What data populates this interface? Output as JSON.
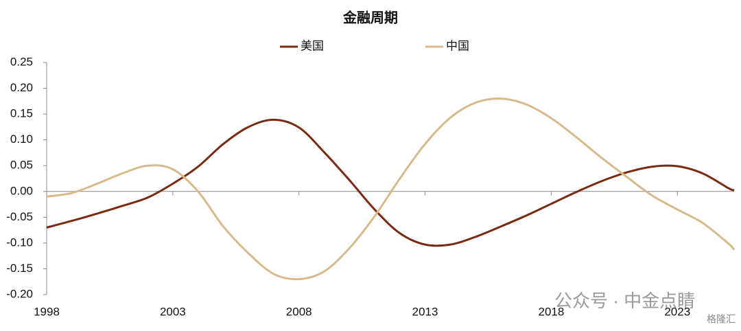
{
  "chart_data": {
    "type": "line",
    "title": "金融周期",
    "watermark": "公众号 · 中金点睛",
    "source_mark": "格隆汇",
    "x": [
      1998,
      1999,
      2000,
      2001,
      2002,
      2003,
      2004,
      2005,
      2006,
      2007,
      2008,
      2009,
      2010,
      2011,
      2012,
      2013,
      2014,
      2015,
      2016,
      2017,
      2018,
      2019,
      2020,
      2021,
      2022,
      2023,
      2024,
      2025,
      2025.25
    ],
    "series": [
      {
        "name": "美国",
        "color": "#7b2a12",
        "values": [
          -0.07,
          -0.057,
          -0.043,
          -0.028,
          -0.012,
          0.015,
          0.048,
          0.092,
          0.125,
          0.139,
          0.124,
          0.076,
          0.022,
          -0.035,
          -0.081,
          -0.103,
          -0.103,
          -0.088,
          -0.068,
          -0.047,
          -0.024,
          -0.001,
          0.02,
          0.037,
          0.048,
          0.049,
          0.035,
          0.007,
          0.002
        ]
      },
      {
        "name": "中国",
        "color": "#d9b88a",
        "values": [
          -0.01,
          -0.003,
          0.015,
          0.035,
          0.05,
          0.043,
          0.0,
          -0.068,
          -0.12,
          -0.16,
          -0.17,
          -0.155,
          -0.11,
          -0.048,
          0.025,
          0.092,
          0.143,
          0.172,
          0.18,
          0.169,
          0.142,
          0.105,
          0.065,
          0.028,
          -0.008,
          -0.035,
          -0.061,
          -0.1,
          -0.113
        ]
      }
    ],
    "xlim": [
      1998,
      2025.25
    ],
    "xticks": [
      1998,
      2003,
      2008,
      2013,
      2018,
      2023
    ],
    "ylim": [
      -0.2,
      0.25
    ],
    "yticks": [
      {
        "value": 0.25,
        "label": "0.25"
      },
      {
        "value": 0.2,
        "label": "0.20"
      },
      {
        "value": 0.15,
        "label": "0.15"
      },
      {
        "value": 0.1,
        "label": "0.10"
      },
      {
        "value": 0.05,
        "label": "0.05"
      },
      {
        "value": 0,
        "label": "0.00"
      },
      {
        "value": -0.05,
        "label": "-0.05"
      },
      {
        "value": -0.1,
        "label": "-0.10"
      },
      {
        "value": -0.15,
        "label": "-0.15"
      },
      {
        "value": -0.2,
        "label": "-0.20"
      }
    ],
    "grid": false
  }
}
